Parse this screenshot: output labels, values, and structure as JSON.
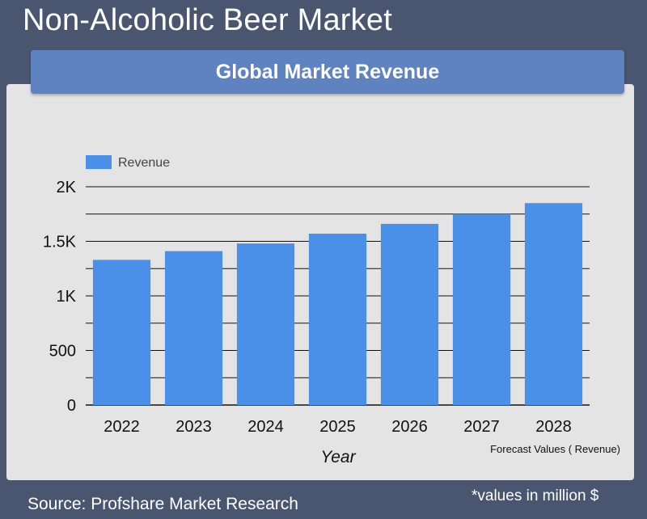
{
  "header": {
    "title": "Non-Alcoholic Beer Market",
    "subtitle": "Global Market Revenue"
  },
  "footer": {
    "source": "Source: Profshare Market Research",
    "note": "*values in million $"
  },
  "colors": {
    "background": "#4a5570",
    "panel": "#e4e4e4",
    "banner": "#5f82c0",
    "bar": "#4a90e8"
  },
  "chart_data": {
    "type": "bar",
    "categories": [
      "2022",
      "2023",
      "2024",
      "2025",
      "2026",
      "2027",
      "2028"
    ],
    "series": [
      {
        "name": "Revenue",
        "values": [
          1330,
          1410,
          1480,
          1570,
          1660,
          1750,
          1850
        ]
      }
    ],
    "xlabel": "Year",
    "ylabel": "",
    "ylim": [
      0,
      2000
    ],
    "yticks": [
      0,
      500,
      1000,
      1500,
      2000
    ],
    "ytick_labels": [
      "0",
      "500",
      "1K",
      "1.5K",
      "2K"
    ],
    "grid": true,
    "legend": "top-left",
    "annotation": "Forecast Values ( Revenue)"
  }
}
